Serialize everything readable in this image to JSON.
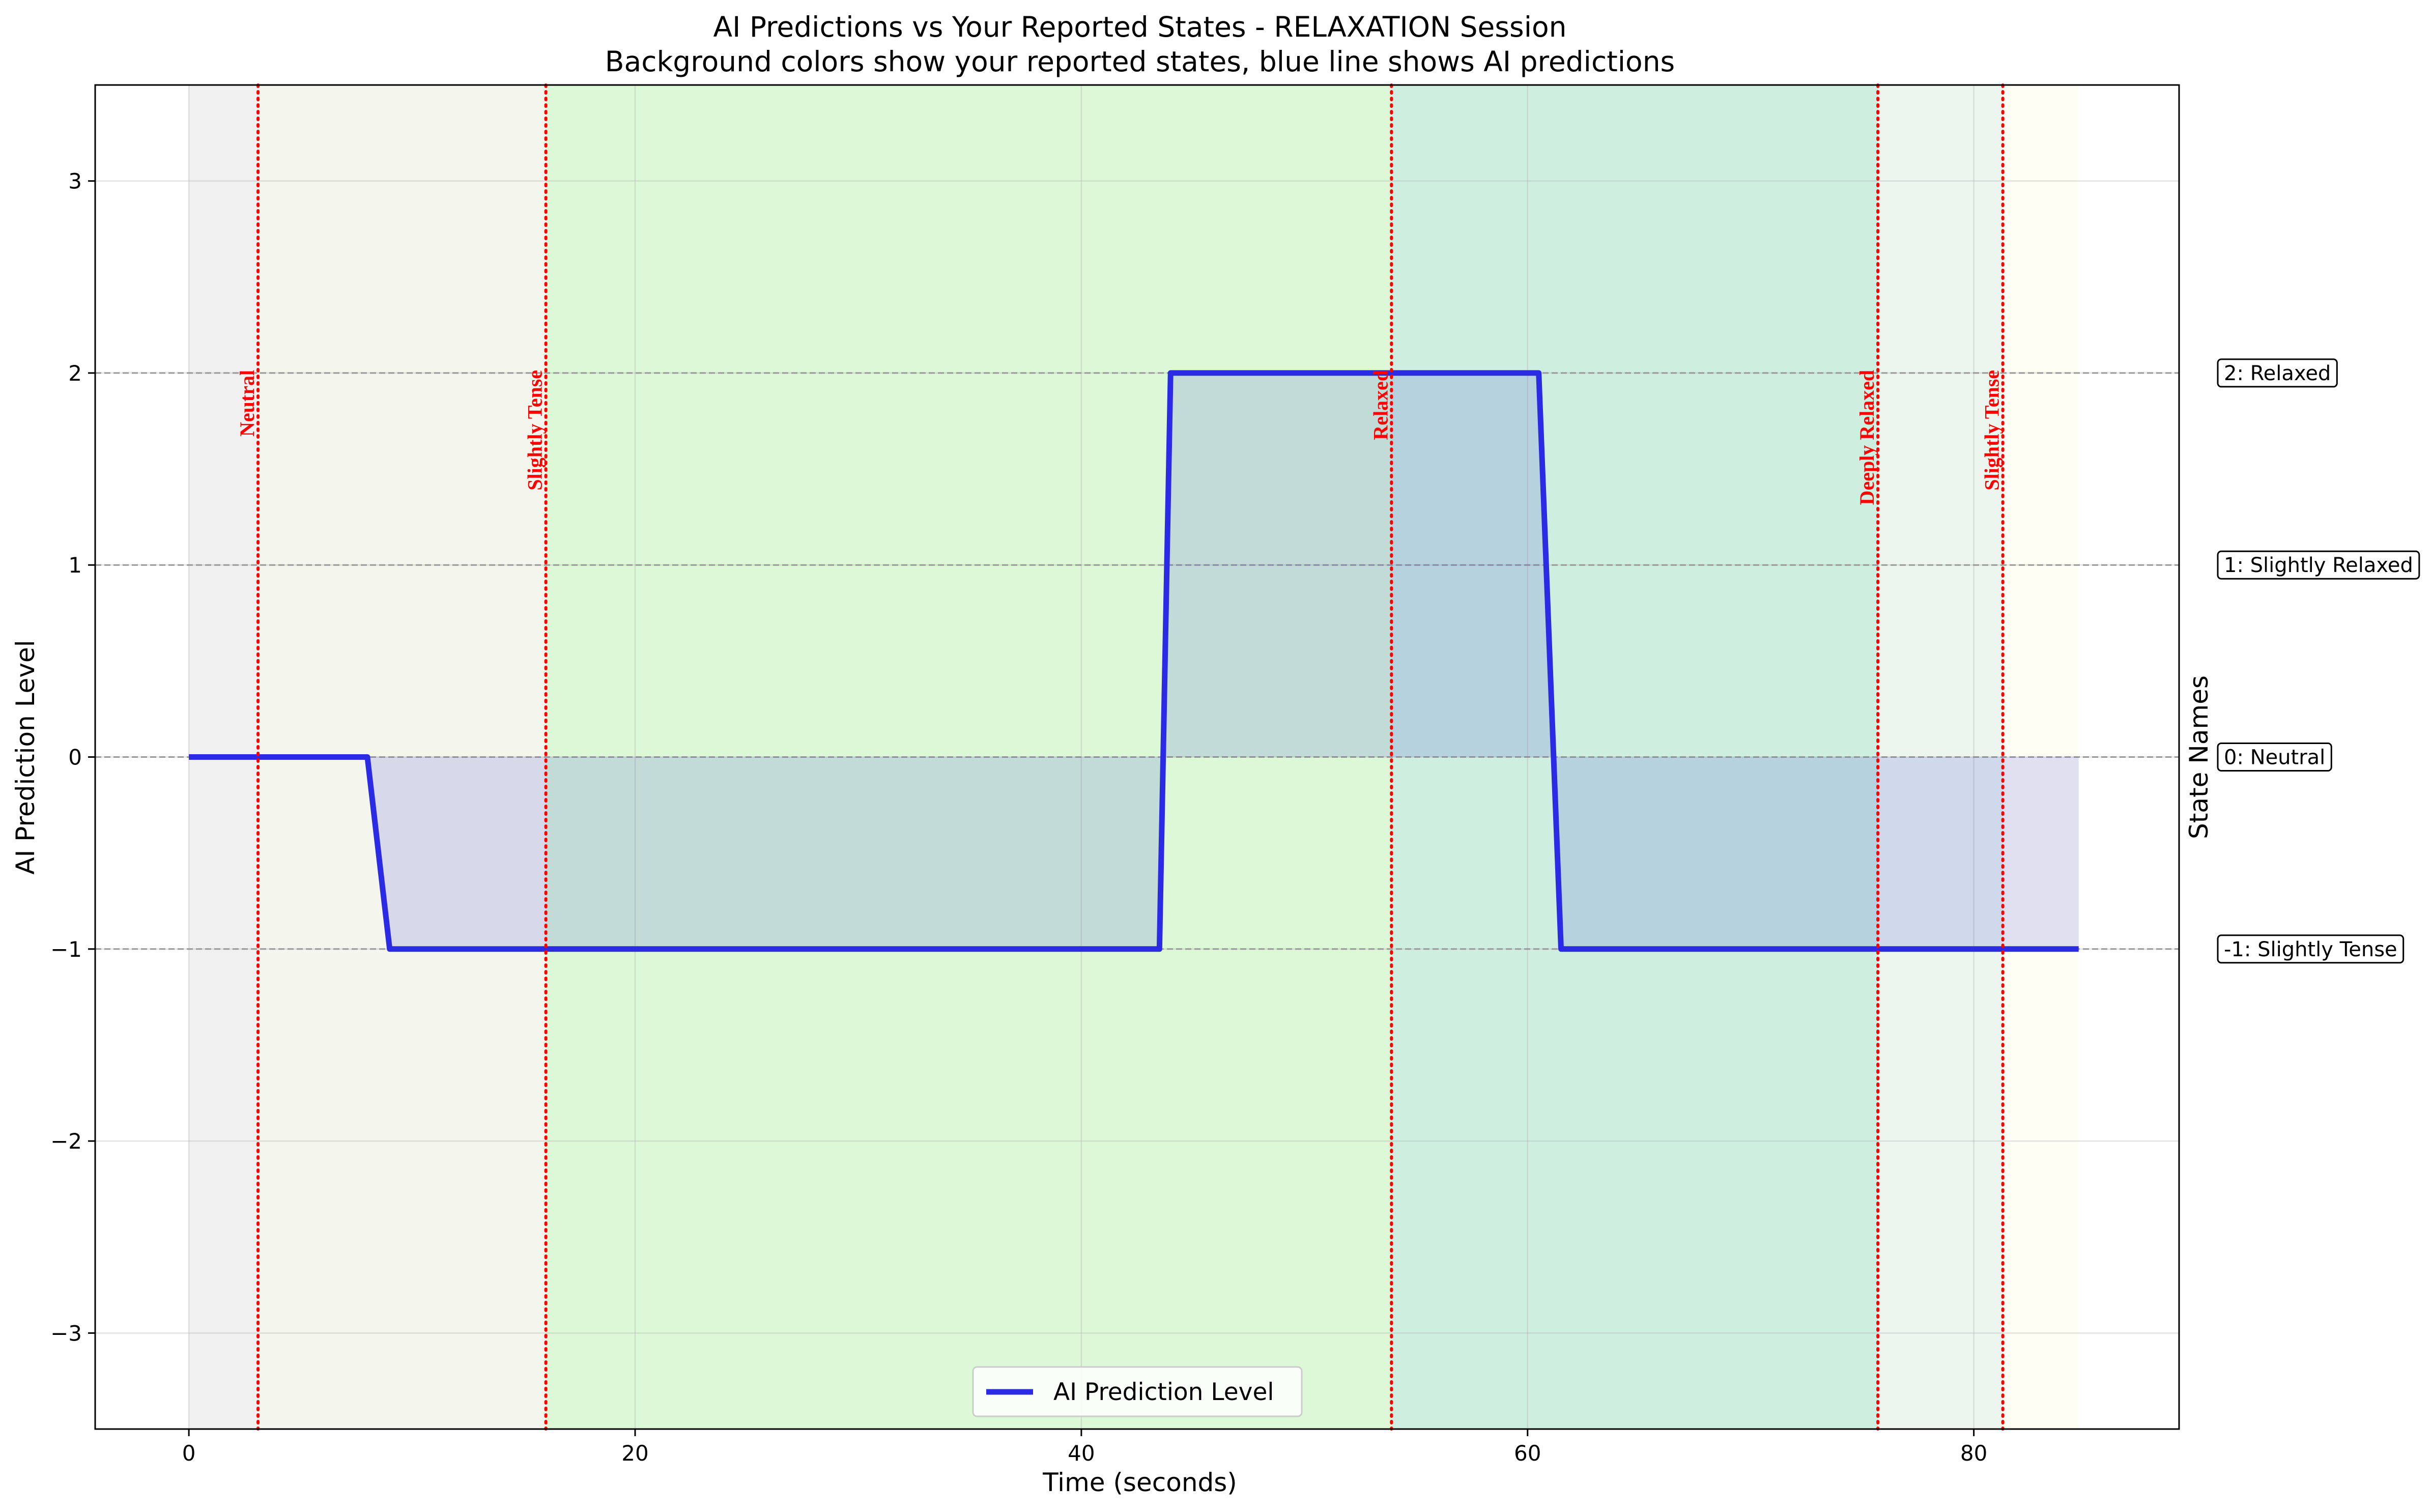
{
  "chart_data": {
    "type": "line",
    "title": "AI Predictions vs Your Reported States - RELAXATION Session",
    "subtitle": "Background colors show your reported states, blue line shows AI predictions",
    "xlabel": "Time (seconds)",
    "ylabel": "AI Prediction Level",
    "ylabel_right": "State Names",
    "xlim": [
      -4.2,
      89.2
    ],
    "ylim": [
      -3.5,
      3.5
    ],
    "x_ticks": [
      0,
      20,
      40,
      60,
      80
    ],
    "y_ticks": [
      -3,
      -2,
      -1,
      0,
      1,
      2,
      3
    ],
    "y_tick_labels": [
      "−3",
      "−2",
      "−1",
      "0",
      "1",
      "2",
      "3"
    ],
    "grid": true,
    "legend_position": "bottom-center",
    "series": [
      {
        "name": "AI Prediction Level",
        "color": "#2b2be6",
        "x": [
          0,
          8,
          9,
          43.5,
          44,
          60.5,
          61.5,
          84.7
        ],
        "y": [
          0,
          0,
          -1,
          -1,
          2,
          2,
          -1,
          -1
        ],
        "fill_to_zero": true
      }
    ],
    "background_regions": [
      {
        "x0": 0,
        "x1": 3.1,
        "color": "#f0f0f0"
      },
      {
        "x0": 3.1,
        "x1": 16.0,
        "color": "#f4f5ec"
      },
      {
        "x0": 16.0,
        "x1": 53.9,
        "color": "#dcf8d6"
      },
      {
        "x0": 53.9,
        "x1": 75.7,
        "color": "#ceeedf"
      },
      {
        "x0": 75.7,
        "x1": 81.3,
        "color": "#ecf5ee"
      },
      {
        "x0": 81.3,
        "x1": 84.7,
        "color": "#fefef4"
      }
    ],
    "state_markers": [
      {
        "x": 3.1,
        "label": "Neutral"
      },
      {
        "x": 16.0,
        "label": "Slightly Tense"
      },
      {
        "x": 53.9,
        "label": "Relaxed"
      },
      {
        "x": 75.7,
        "label": "Deeply Relaxed"
      },
      {
        "x": 81.3,
        "label": "Slightly Tense"
      }
    ],
    "reference_lines": [
      2,
      1,
      0,
      -1
    ],
    "state_names": [
      {
        "y": 2,
        "label": "2: Relaxed"
      },
      {
        "y": 1,
        "label": "1: Slightly Relaxed"
      },
      {
        "y": 0,
        "label": "0: Neutral"
      },
      {
        "y": -1,
        "label": "-1: Slightly Tense"
      }
    ]
  }
}
